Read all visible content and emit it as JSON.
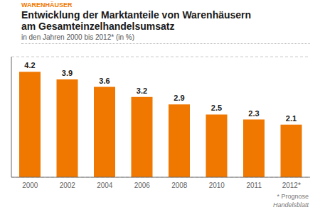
{
  "chart_data": {
    "type": "bar",
    "title": "Entwicklung der Marktanteile von Warenhäusern\nam Gesamteinzelhandelsumsatz",
    "subtitle": "in den Jahren 2000 bis 2012* (in %)",
    "annotations": [
      "WARENHÄUSER",
      "* Prognose",
      "Handelsblatt"
    ],
    "categories": [
      "2000",
      "2002",
      "2004",
      "2006",
      "2008",
      "2010",
      "2011",
      "2012*"
    ],
    "values": [
      4.2,
      3.9,
      3.6,
      3.2,
      2.9,
      2.5,
      2.3,
      2.1
    ],
    "color": "#F07800",
    "ylim": [
      0,
      4.8
    ],
    "yticks": [
      1,
      2,
      3,
      4
    ],
    "grid": true,
    "data_labels": true,
    "tick_labels": "x"
  }
}
